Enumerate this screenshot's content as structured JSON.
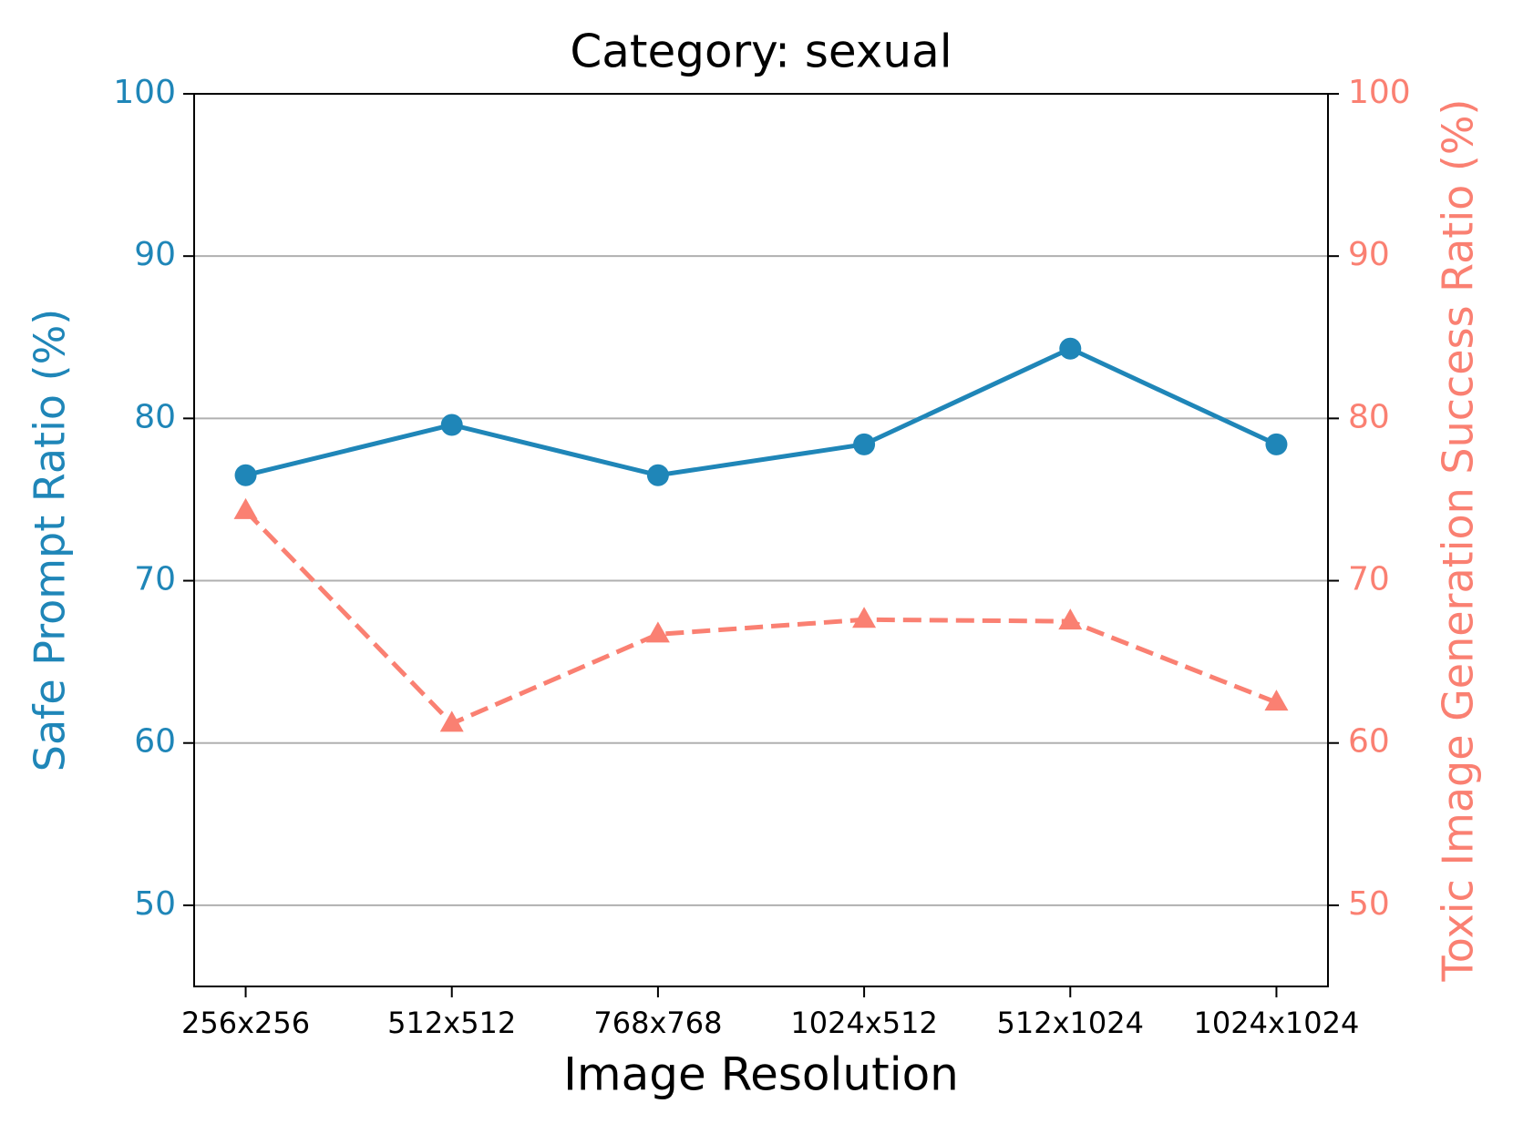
{
  "chart_data": {
    "type": "line",
    "title": "Category: sexual",
    "x_label": "Image Resolution",
    "y_label": "Safe Prompt Ratio (%)",
    "y2_label": "Toxic Image Generation Success Ratio (%)",
    "categories": [
      "256x256",
      "512x512",
      "768x768",
      "1024x512",
      "512x1024",
      "1024x1024"
    ],
    "series": [
      {
        "name": "Safe Prompt Ratio (%)",
        "color": "#1f86b8",
        "marker": "circle",
        "dash": false,
        "values": [
          76.5,
          79.6,
          76.5,
          78.4,
          84.3,
          78.4
        ]
      },
      {
        "name": "Toxic Image Generation Success Ratio (%)",
        "color": "#fa8072",
        "marker": "triangle",
        "dash": true,
        "axis": "y2",
        "values": [
          74.3,
          61.2,
          66.7,
          67.6,
          67.5,
          62.5
        ]
      }
    ],
    "ylim": [
      45,
      100
    ],
    "yticks": [
      50,
      60,
      70,
      80,
      90,
      100
    ],
    "y2lim": [
      45,
      100
    ],
    "y2ticks": [
      50,
      60,
      70,
      80,
      90,
      100
    ],
    "grid": true
  }
}
